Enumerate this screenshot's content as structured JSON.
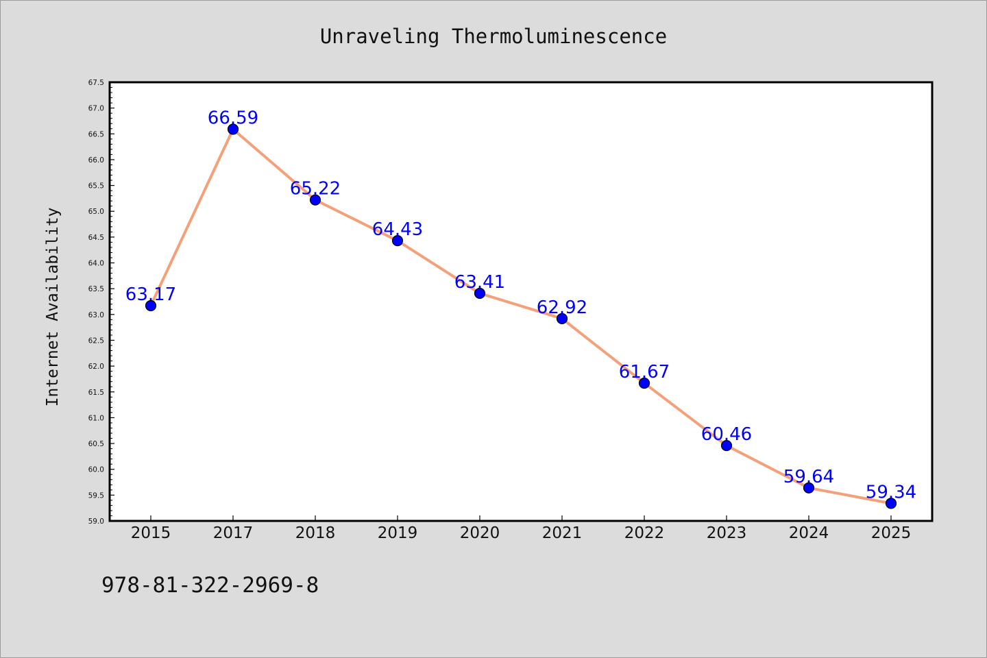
{
  "chart_data": {
    "type": "line",
    "title": "Unraveling Thermoluminescence",
    "xlabel": "",
    "ylabel": "Internet Availability",
    "categories": [
      "2015",
      "2017",
      "2018",
      "2019",
      "2020",
      "2021",
      "2022",
      "2023",
      "2024",
      "2025"
    ],
    "series": [
      {
        "values": [
          63.17,
          66.59,
          65.22,
          64.43,
          63.41,
          62.92,
          61.67,
          60.46,
          59.64,
          59.34
        ],
        "labels": [
          "63.17",
          "66.59",
          "65.22",
          "64.43",
          "63.41",
          "62.92",
          "61.67",
          "60.46",
          "59.64",
          "59.34"
        ]
      }
    ],
    "ylim": [
      59.0,
      67.5
    ],
    "yticks": [
      "59.0",
      "59.5",
      "60.0",
      "60.5",
      "61.0",
      "61.5",
      "62.0",
      "62.5",
      "63.0",
      "63.5",
      "64.0",
      "64.5",
      "65.0",
      "65.5",
      "66.0",
      "66.5",
      "67.0",
      "67.5"
    ],
    "grid": false,
    "colors": {
      "line": "#f4a07a",
      "marker": "#0000ff",
      "data_label": "#0000ff",
      "background": "#dcdcdc",
      "plot_background": "#ffffff"
    }
  },
  "footer": {
    "isbn": "978-81-322-2969-8"
  }
}
